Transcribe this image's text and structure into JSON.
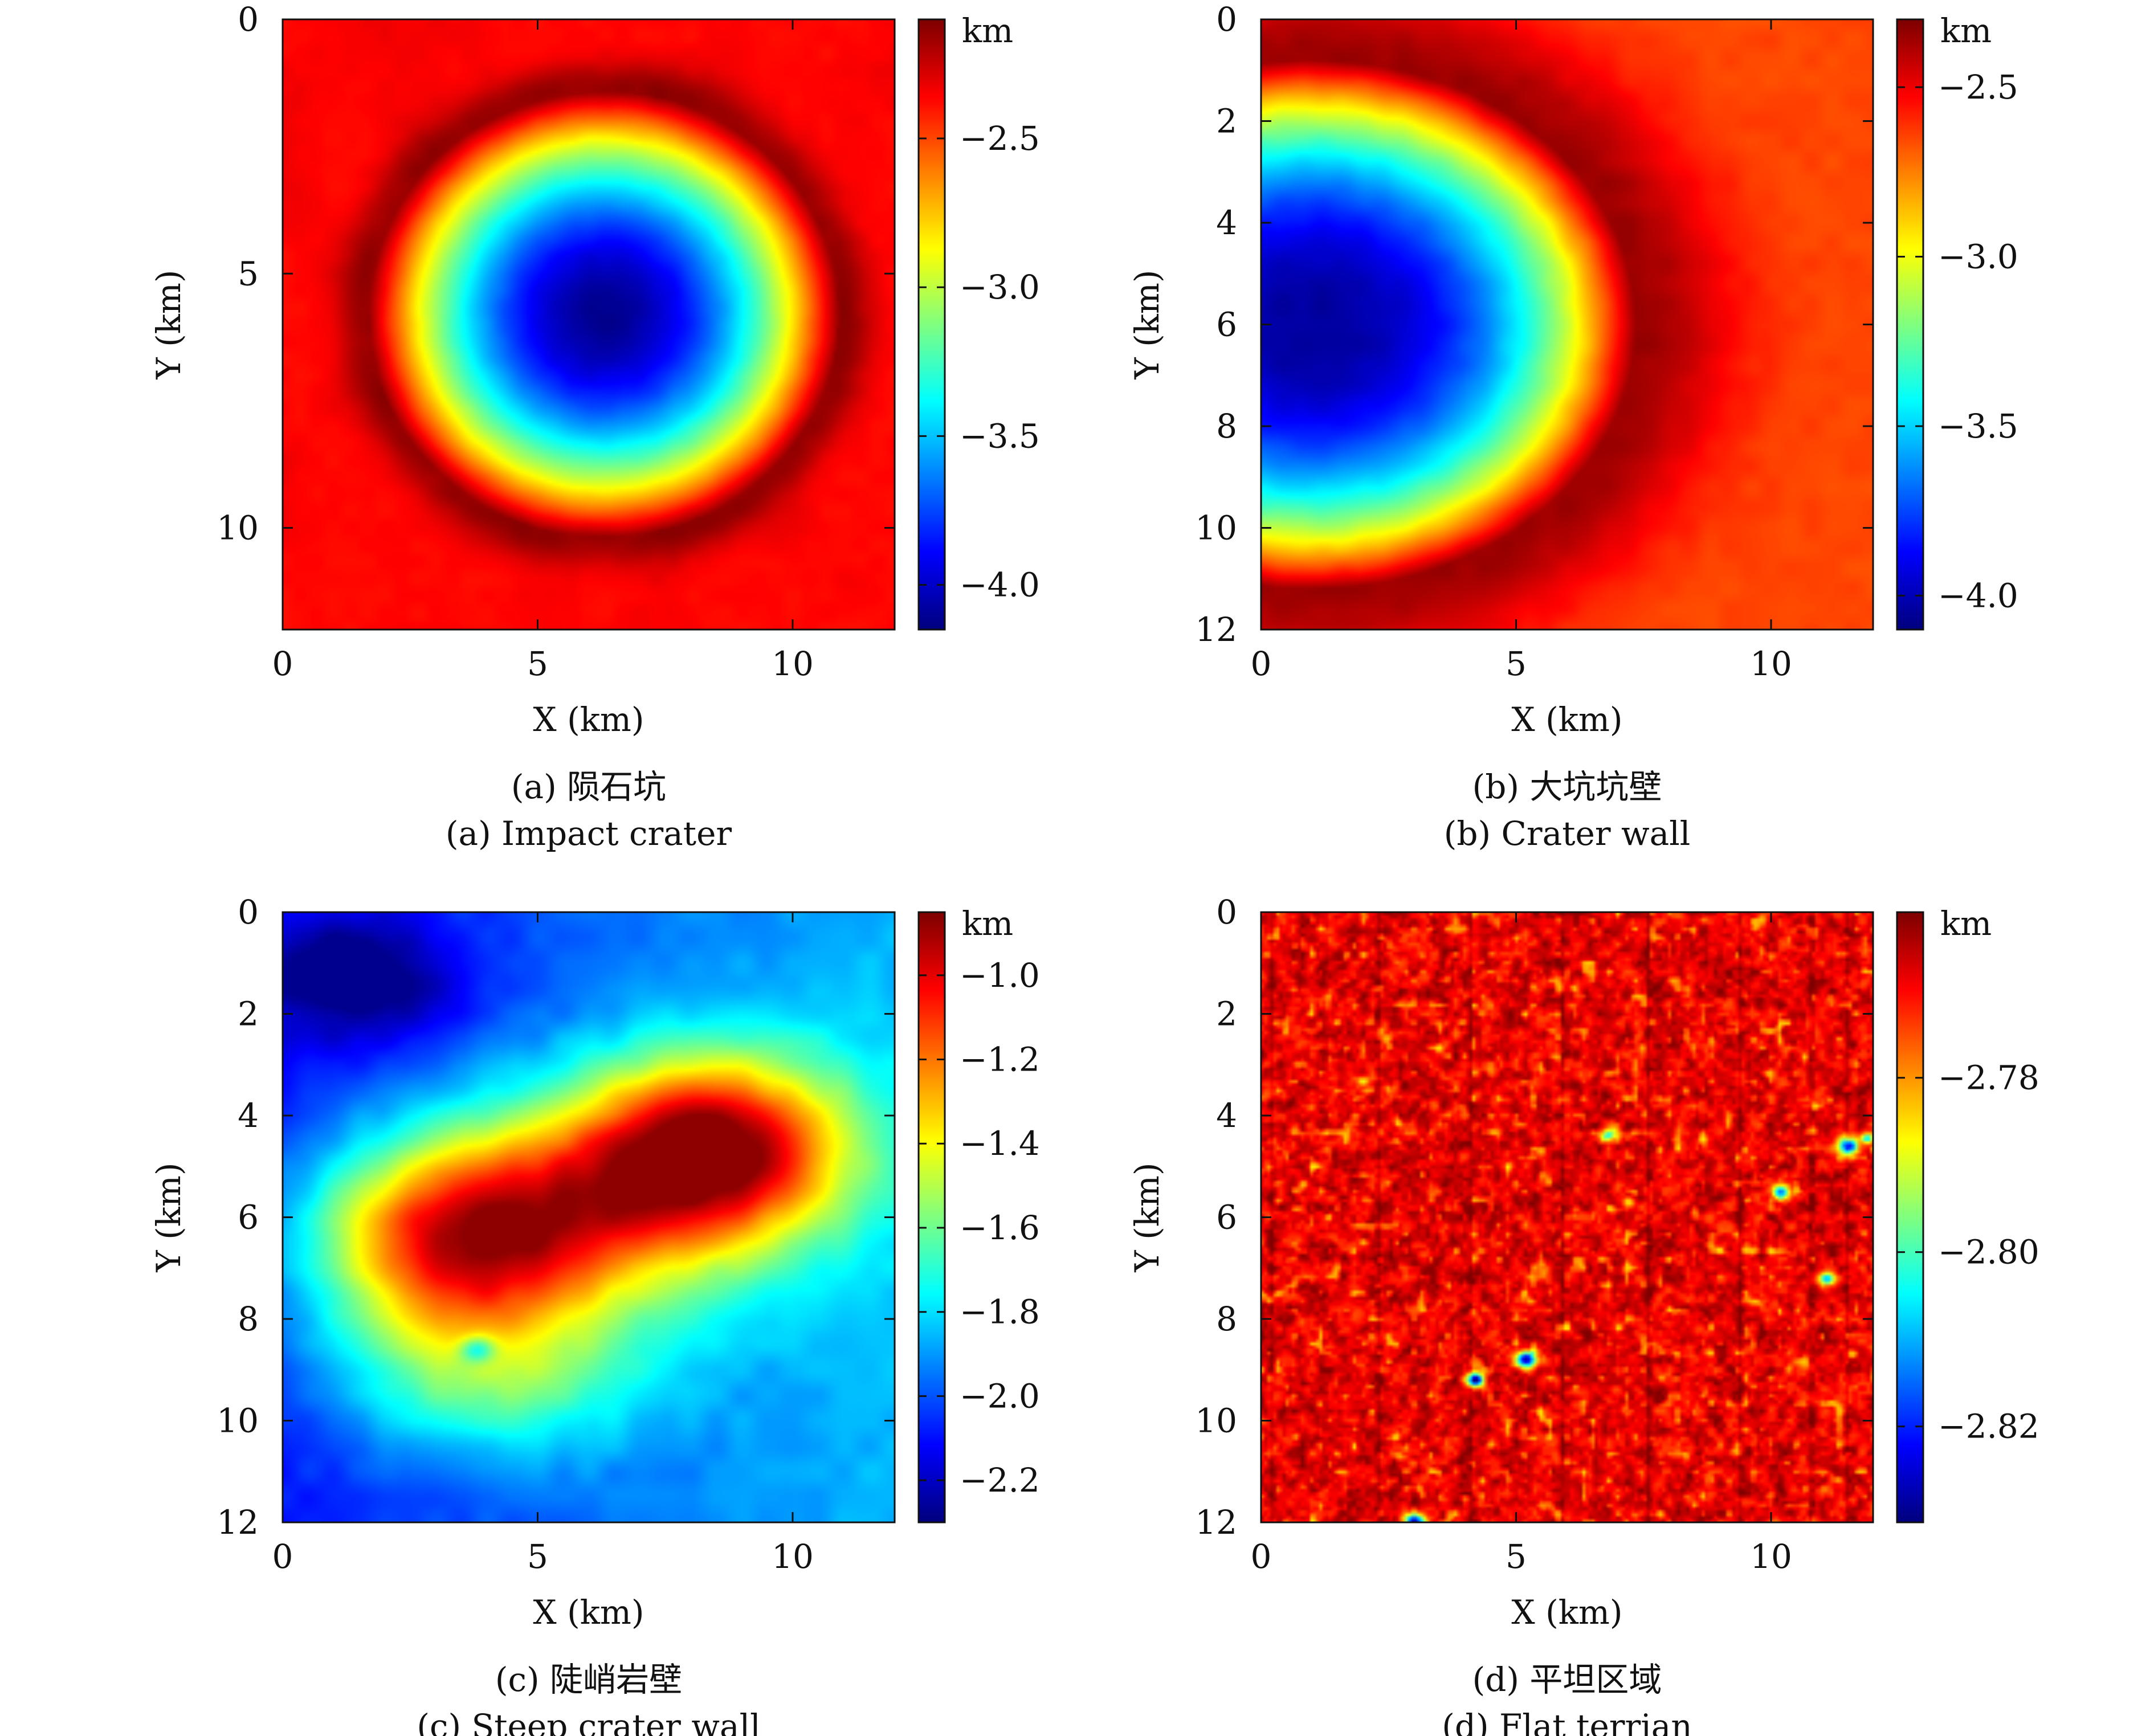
{
  "figure": {
    "panels": [
      {
        "caption_cn": "(a) 陨石坑",
        "caption_en": "(a) Impact crater",
        "xlabel": "X (km)",
        "ylabel": "Y (km)",
        "colorbar_unit": "km"
      },
      {
        "caption_cn": "(b) 大坑坑壁",
        "caption_en": "(b) Crater wall",
        "xlabel": "X (km)",
        "ylabel": "Y (km)",
        "colorbar_unit": "km"
      },
      {
        "caption_cn": "(c) 陡峭岩壁",
        "caption_en": "(c) Steep crater wall",
        "xlabel": "X (km)",
        "ylabel": "Y (km)",
        "colorbar_unit": "km"
      },
      {
        "caption_cn": "(d) 平坦区域",
        "caption_en": "(d) Flat terrian",
        "xlabel": "X (km)",
        "ylabel": "Y (km)",
        "colorbar_unit": "km"
      }
    ]
  },
  "chart_data": [
    {
      "type": "heatmap",
      "title": "(a) Impact crater",
      "xlabel": "X (km)",
      "ylabel": "Y (km)",
      "xlim": [
        0,
        12
      ],
      "ylim": [
        0,
        12
      ],
      "y_inverted": true,
      "xticks": [
        0,
        5,
        10
      ],
      "yticks": [
        0,
        5,
        10
      ],
      "colorbar": {
        "unit": "km",
        "range": [
          -4.15,
          -2.1
        ],
        "ticks": [
          -2.5,
          -3.0,
          -3.5,
          -4.0
        ],
        "tick_labels": [
          "−2.5",
          "−3.0",
          "−3.5",
          "−4.0"
        ],
        "colormap": "jet"
      },
      "features": [
        {
          "kind": "crater_floor",
          "x": 6.3,
          "y": 5.8,
          "value": -4.1
        },
        {
          "kind": "rim",
          "x": 6.3,
          "y": 5.8,
          "value": -2.15
        },
        {
          "kind": "background",
          "value": -2.35
        }
      ]
    },
    {
      "type": "heatmap",
      "title": "(b) Crater wall",
      "xlabel": "X (km)",
      "ylabel": "Y (km)",
      "xlim": [
        0,
        12
      ],
      "ylim": [
        0,
        12
      ],
      "y_inverted": true,
      "xticks": [
        0,
        5,
        10
      ],
      "yticks": [
        0,
        2,
        4,
        6,
        8,
        10,
        12
      ],
      "colorbar": {
        "unit": "km",
        "range": [
          -4.1,
          -2.3
        ],
        "ticks": [
          -2.5,
          -3.0,
          -3.5,
          -4.0
        ],
        "tick_labels": [
          "−2.5",
          "−3.0",
          "−3.5",
          "−4.0"
        ],
        "colormap": "jet"
      },
      "features": [
        {
          "kind": "crater_floor",
          "x": 1.0,
          "y": 6.0,
          "value": -4.05
        },
        {
          "kind": "rim",
          "x": 1.0,
          "y": 6.0,
          "value": -2.35
        },
        {
          "kind": "background",
          "value": -2.65
        }
      ]
    },
    {
      "type": "heatmap",
      "title": "(c) Steep crater wall",
      "xlabel": "X (km)",
      "ylabel": "Y (km)",
      "xlim": [
        0,
        12
      ],
      "ylim": [
        0,
        12
      ],
      "y_inverted": true,
      "xticks": [
        0,
        5,
        10
      ],
      "yticks": [
        0,
        2,
        4,
        6,
        8,
        10,
        12
      ],
      "colorbar": {
        "unit": "km",
        "range": [
          -2.3,
          -0.85
        ],
        "ticks": [
          -1.0,
          -1.2,
          -1.4,
          -1.6,
          -1.8,
          -2.0,
          -2.2
        ],
        "tick_labels": [
          "−1.0",
          "−1.2",
          "−1.4",
          "−1.6",
          "−1.8",
          "−2.0",
          "−2.2"
        ],
        "colormap": "jet"
      },
      "features": [
        {
          "kind": "peak",
          "x": 3.3,
          "y": 6.5,
          "value": -0.88
        },
        {
          "kind": "peak",
          "x": 8.5,
          "y": 4.6,
          "value": -0.87
        },
        {
          "kind": "low",
          "x": 1.5,
          "y": 1.3,
          "value": -2.25
        },
        {
          "kind": "spot",
          "x": 3.8,
          "y": 8.6,
          "value": -1.4
        }
      ]
    },
    {
      "type": "heatmap",
      "title": "(d) Flat terrian",
      "xlabel": "X (km)",
      "ylabel": "Y (km)",
      "xlim": [
        0,
        12
      ],
      "ylim": [
        0,
        12
      ],
      "y_inverted": true,
      "xticks": [
        0,
        5,
        10
      ],
      "yticks": [
        0,
        2,
        4,
        6,
        8,
        10,
        12
      ],
      "colorbar": {
        "unit": "km",
        "range": [
          -2.831,
          -2.761
        ],
        "ticks": [
          -2.78,
          -2.8,
          -2.82
        ],
        "tick_labels": [
          "−2.78",
          "−2.80",
          "−2.82"
        ],
        "colormap": "jet"
      },
      "features": [
        {
          "kind": "pit",
          "x": 5.2,
          "y": 8.8,
          "value": -2.828
        },
        {
          "kind": "pit",
          "x": 4.2,
          "y": 9.2,
          "value": -2.829
        },
        {
          "kind": "pit",
          "x": 11.5,
          "y": 4.6,
          "value": -2.823
        },
        {
          "kind": "pit",
          "x": 10.2,
          "y": 5.5,
          "value": -2.815
        },
        {
          "kind": "pit",
          "x": 11.1,
          "y": 7.2,
          "value": -2.812
        },
        {
          "kind": "pit",
          "x": 3.0,
          "y": 12.0,
          "value": -2.825
        },
        {
          "kind": "pit",
          "x": 6.8,
          "y": 4.4,
          "value": -2.795
        },
        {
          "kind": "background",
          "value": -2.768
        }
      ]
    }
  ]
}
